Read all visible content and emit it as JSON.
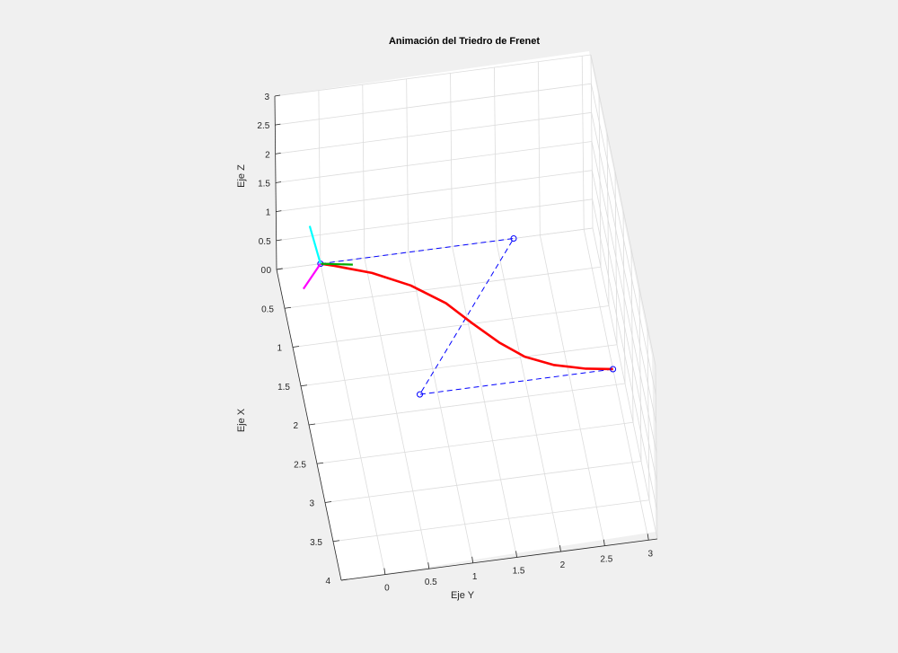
{
  "chart_data": {
    "type": "3d-line",
    "title": "Animación del Triedro de Frenet",
    "xlabel": "Eje X",
    "ylabel": "Eje Y",
    "zlabel": "Eje Z",
    "xlim": [
      0,
      4
    ],
    "ylim": [
      -0.5,
      3.1
    ],
    "zlim": [
      0,
      3
    ],
    "x_ticks": [
      "0",
      "0.5",
      "1",
      "1.5",
      "2",
      "2.5",
      "3",
      "3.5",
      "4"
    ],
    "y_ticks": [
      "0",
      "0.5",
      "1",
      "1.5",
      "2",
      "2.5",
      "3"
    ],
    "z_ticks": [
      "0",
      "0.5",
      "1",
      "1.5",
      "2",
      "2.5",
      "3"
    ],
    "grid": true,
    "series": [
      {
        "kind": "bezier-curve",
        "color": "#ff0000",
        "points": [
          [
            0,
            0,
            0
          ],
          [
            0.05,
            0.15,
            0
          ],
          [
            0.2,
            0.55,
            0
          ],
          [
            0.42,
            0.95,
            0
          ],
          [
            0.7,
            1.3,
            0
          ],
          [
            1.0,
            1.55,
            0
          ],
          [
            1.28,
            1.8,
            0
          ],
          [
            1.5,
            2.05,
            0
          ],
          [
            1.65,
            2.35,
            0
          ],
          [
            1.75,
            2.7,
            0
          ],
          [
            1.8,
            3.0,
            0
          ]
        ]
      },
      {
        "kind": "control-polygon",
        "color": "#0000ff",
        "points": [
          [
            0,
            0,
            0
          ],
          [
            0,
            2.2,
            0
          ],
          [
            1.8,
            0.8,
            0
          ],
          [
            1.8,
            3.0,
            0
          ]
        ]
      }
    ],
    "frenet_frame": {
      "origin": [
        0,
        0,
        0
      ],
      "tangent_color": "#00aa00",
      "normal_color": "#00ffff",
      "binormal_color": "#ff00ff"
    }
  }
}
